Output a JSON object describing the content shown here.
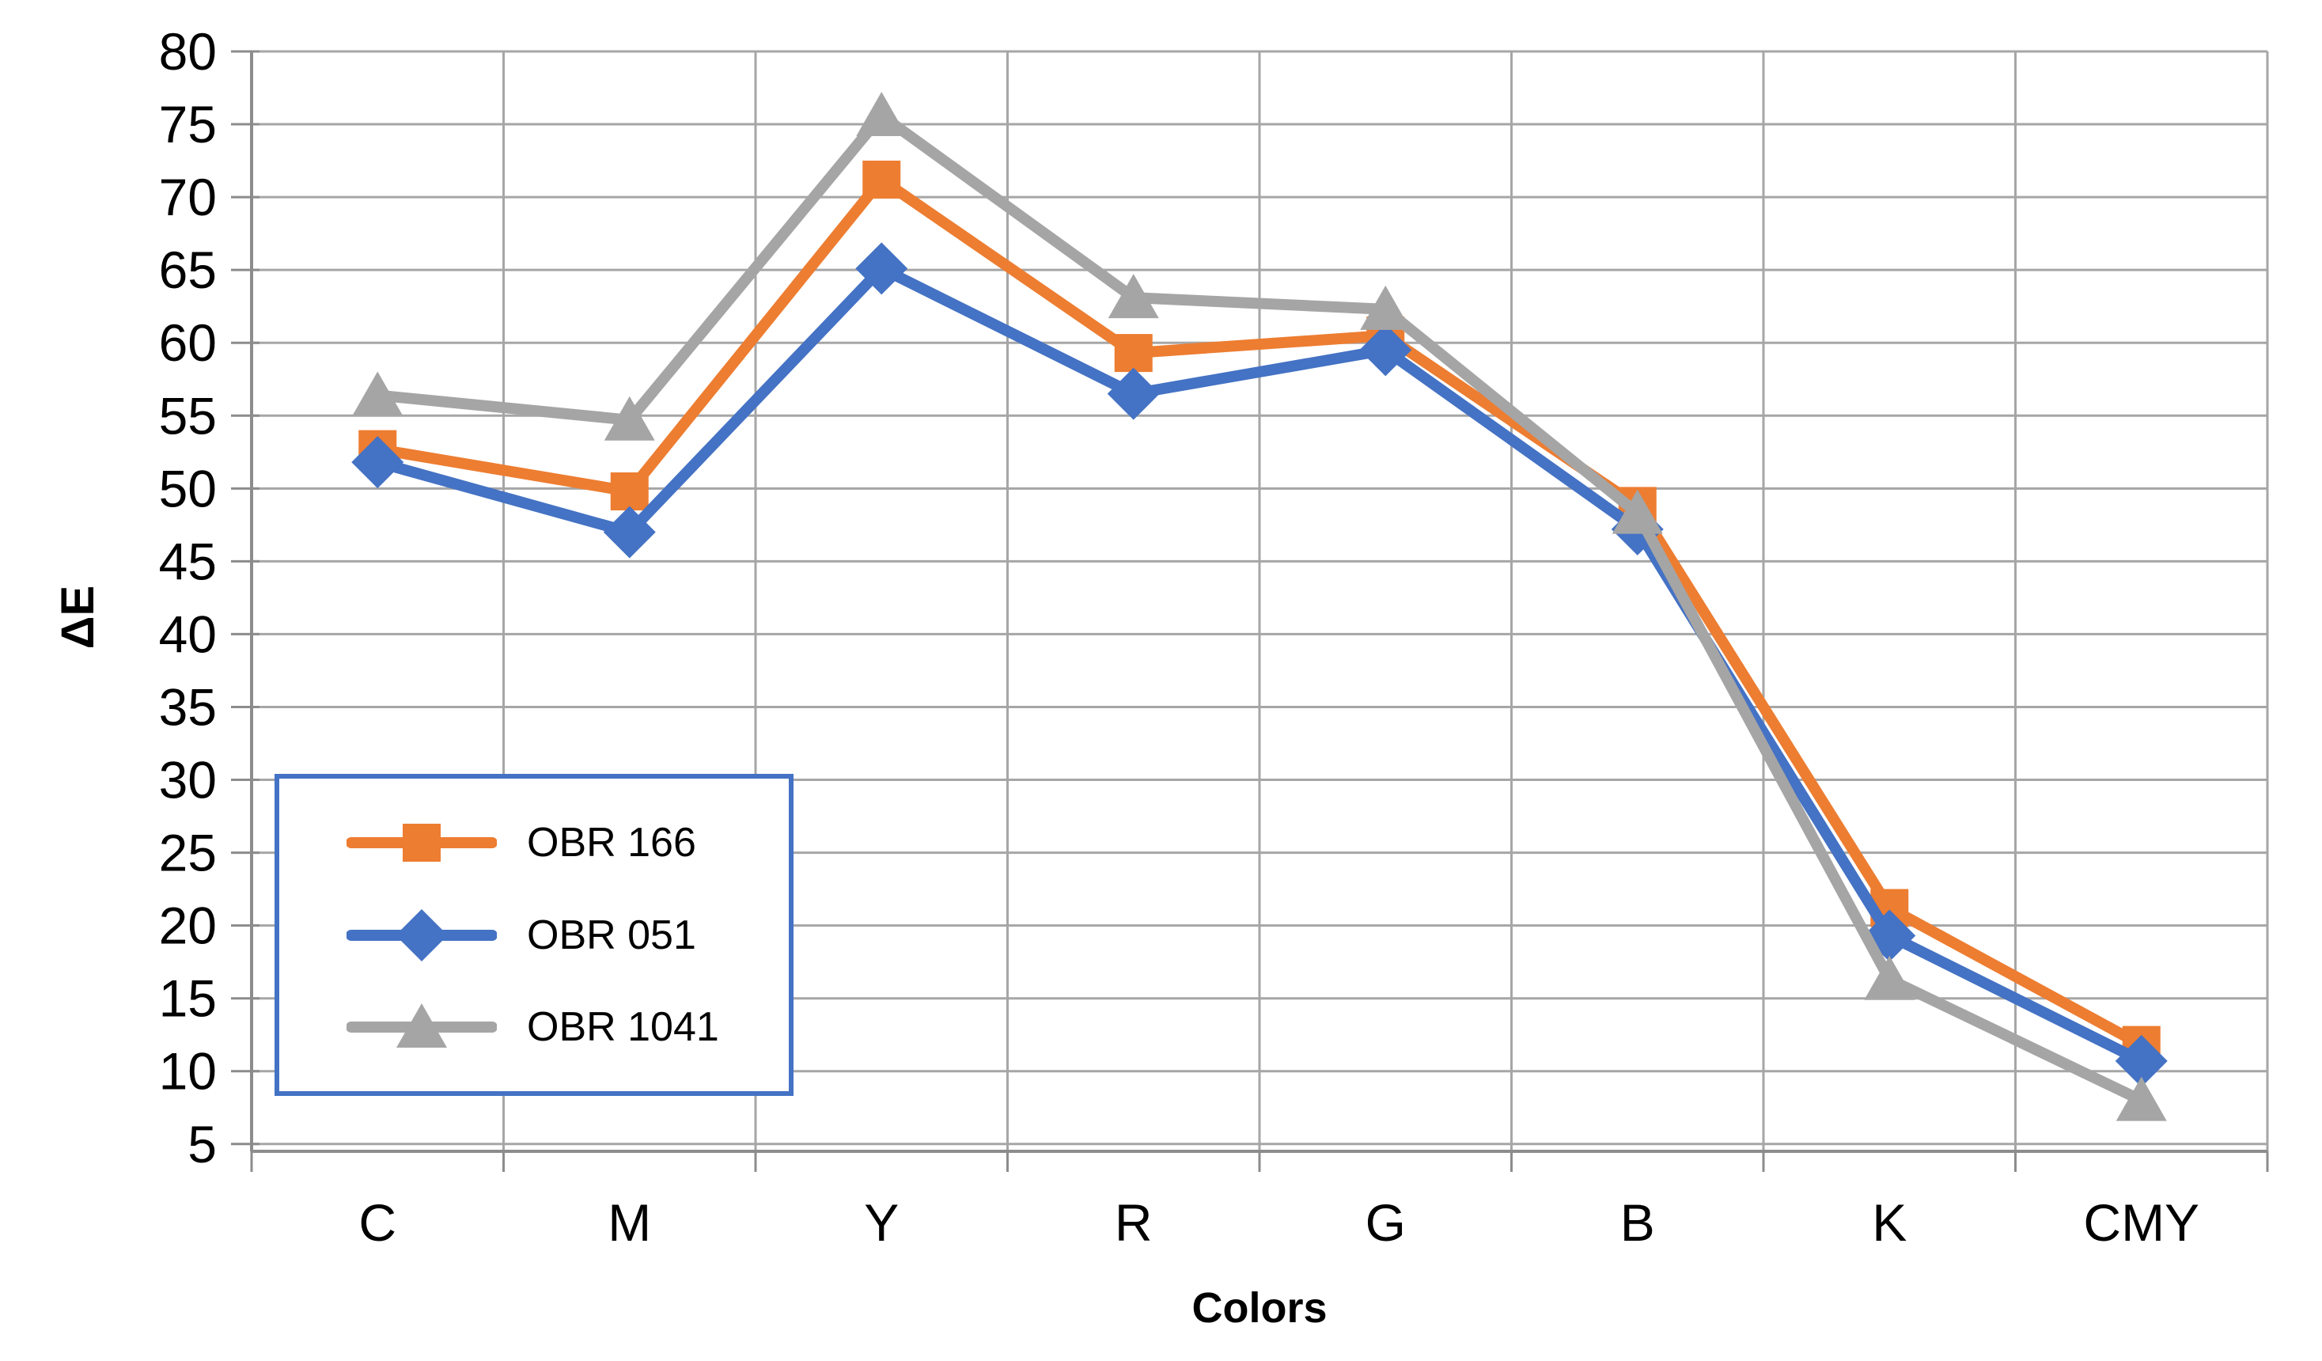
{
  "chart_data": {
    "type": "line",
    "title": "",
    "xlabel": "Colors",
    "ylabel": "ΔE",
    "categories": [
      "C",
      "M",
      "Y",
      "R",
      "G",
      "B",
      "K",
      "CMY"
    ],
    "series": [
      {
        "name": "OBR 166",
        "color": "#ED7D31",
        "marker": "square",
        "values": [
          52.7,
          49.8,
          71.2,
          59.3,
          60.5,
          48.8,
          21.2,
          11.8
        ]
      },
      {
        "name": "OBR 051",
        "color": "#4472C4",
        "marker": "diamond",
        "values": [
          51.8,
          47.0,
          65.1,
          56.5,
          59.5,
          47.2,
          19.3,
          10.7
        ]
      },
      {
        "name": "OBR 1041",
        "color": "#A5A5A5",
        "marker": "triangle",
        "values": [
          56.4,
          54.7,
          75.6,
          63.1,
          62.3,
          48.3,
          16.3,
          8.0
        ]
      }
    ],
    "ylim": [
      5,
      80
    ],
    "ytick_step": 5,
    "yticks": [
      80,
      75,
      70,
      65,
      60,
      55,
      50,
      45,
      40,
      35,
      30,
      25,
      20,
      15,
      10,
      5
    ],
    "grid": "both",
    "legend_position": "inside-bottom-left"
  },
  "colors": {
    "gridline": "#A6A6A6",
    "axis": "#8C8C8C",
    "text": "#000000",
    "legend_border": "#4472C4",
    "background": "#FFFFFF"
  }
}
